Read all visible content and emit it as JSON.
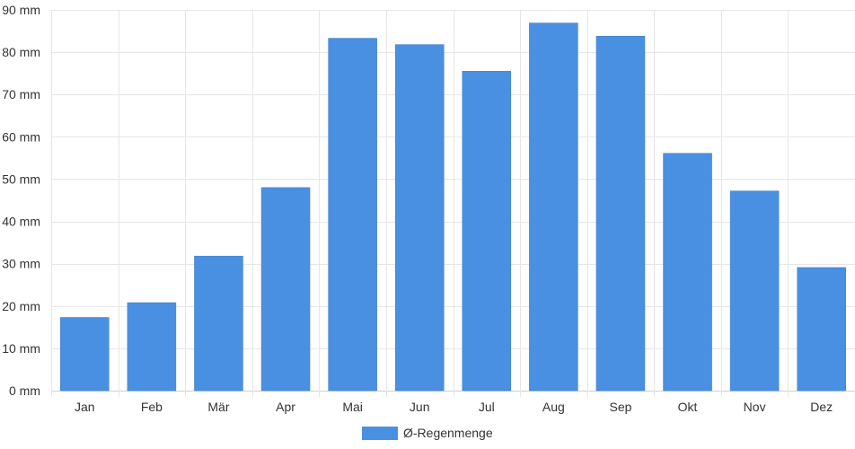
{
  "chart_data": {
    "type": "bar",
    "categories": [
      "Jan",
      "Feb",
      "Mär",
      "Apr",
      "Mai",
      "Jun",
      "Jul",
      "Aug",
      "Sep",
      "Okt",
      "Nov",
      "Dez"
    ],
    "series": [
      {
        "name": "Ø-Regenmenge",
        "color": "#4a90e2",
        "values": [
          17.3,
          20.8,
          31.8,
          48.0,
          83.3,
          81.8,
          75.5,
          86.9,
          83.8,
          56.1,
          47.2,
          29.1
        ]
      }
    ],
    "y_unit": "mm",
    "ylim": [
      0,
      90
    ],
    "yticks": [
      "0 mm",
      "10 mm",
      "20 mm",
      "30 mm",
      "40 mm",
      "50 mm",
      "60 mm",
      "70 mm",
      "80 mm",
      "90 mm"
    ],
    "grid": true,
    "legend": "bottom-center"
  }
}
